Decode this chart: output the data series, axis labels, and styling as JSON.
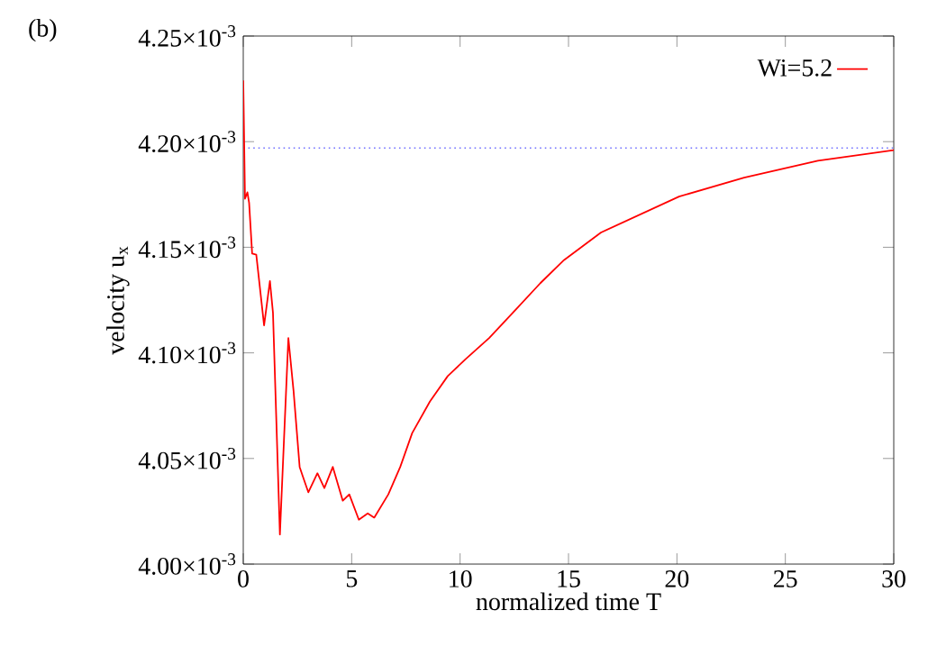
{
  "chart_data": {
    "type": "line",
    "xlabel": "normalized time T",
    "ylabel": "velocity u$_{x}$",
    "annotations": [
      "(b)"
    ],
    "x": [
      0,
      0.08,
      0.19,
      0.27,
      0.41,
      0.6,
      0.96,
      1.23,
      1.37,
      1.69,
      2.08,
      2.32,
      2.6,
      2.73,
      3.0,
      3.42,
      3.74,
      4.13,
      4.59,
      4.89,
      5.33,
      5.74,
      6.04,
      6.69,
      7.24,
      7.79,
      8.61,
      9.43,
      10.25,
      11.34,
      12.43,
      13.7,
      14.8,
      16.5,
      20.1,
      23.1,
      26.5,
      30.0
    ],
    "series": [
      {
        "name": "Wi=5.2",
        "color": "#ff0000",
        "values": [
          0.004229,
          0.004173,
          0.004176,
          0.004171,
          0.004147,
          0.0041465,
          0.004113,
          0.004134,
          0.004119,
          0.004014,
          0.004107,
          0.004082,
          0.004046,
          0.004042,
          0.004034,
          0.004043,
          0.004036,
          0.004046,
          0.00403,
          0.004033,
          0.004021,
          0.004024,
          0.004022,
          0.004033,
          0.004046,
          0.004062,
          0.004077,
          0.004089,
          0.004097,
          0.004107,
          0.004119,
          0.004133,
          0.004144,
          0.004157,
          0.004174,
          0.004183,
          0.004191,
          0.004196
        ]
      }
    ],
    "ref_lines": [
      {
        "axis": "y",
        "value": 0.004197,
        "color": "#7070ff",
        "line_style": "dotted"
      }
    ],
    "xlim": [
      0,
      30
    ],
    "xticks": [
      0,
      5,
      10,
      15,
      20,
      25,
      30
    ],
    "ylim": [
      0.004,
      0.00425
    ],
    "yticks": [
      {
        "value": 0.004,
        "label": "4.00×10$^{-3}$"
      },
      {
        "value": 0.00405,
        "label": "4.05×10$^{-3}$"
      },
      {
        "value": 0.0041,
        "label": "4.10×10$^{-3}$"
      },
      {
        "value": 0.00415,
        "label": "4.15×10$^{-3}$"
      },
      {
        "value": 0.0042,
        "label": "4.20×10$^{-3}$"
      },
      {
        "value": 0.00425,
        "label": "4.25×10$^{-3}$"
      }
    ],
    "legend": "top right",
    "grid": false,
    "marker": "none",
    "line_style": "solid"
  }
}
